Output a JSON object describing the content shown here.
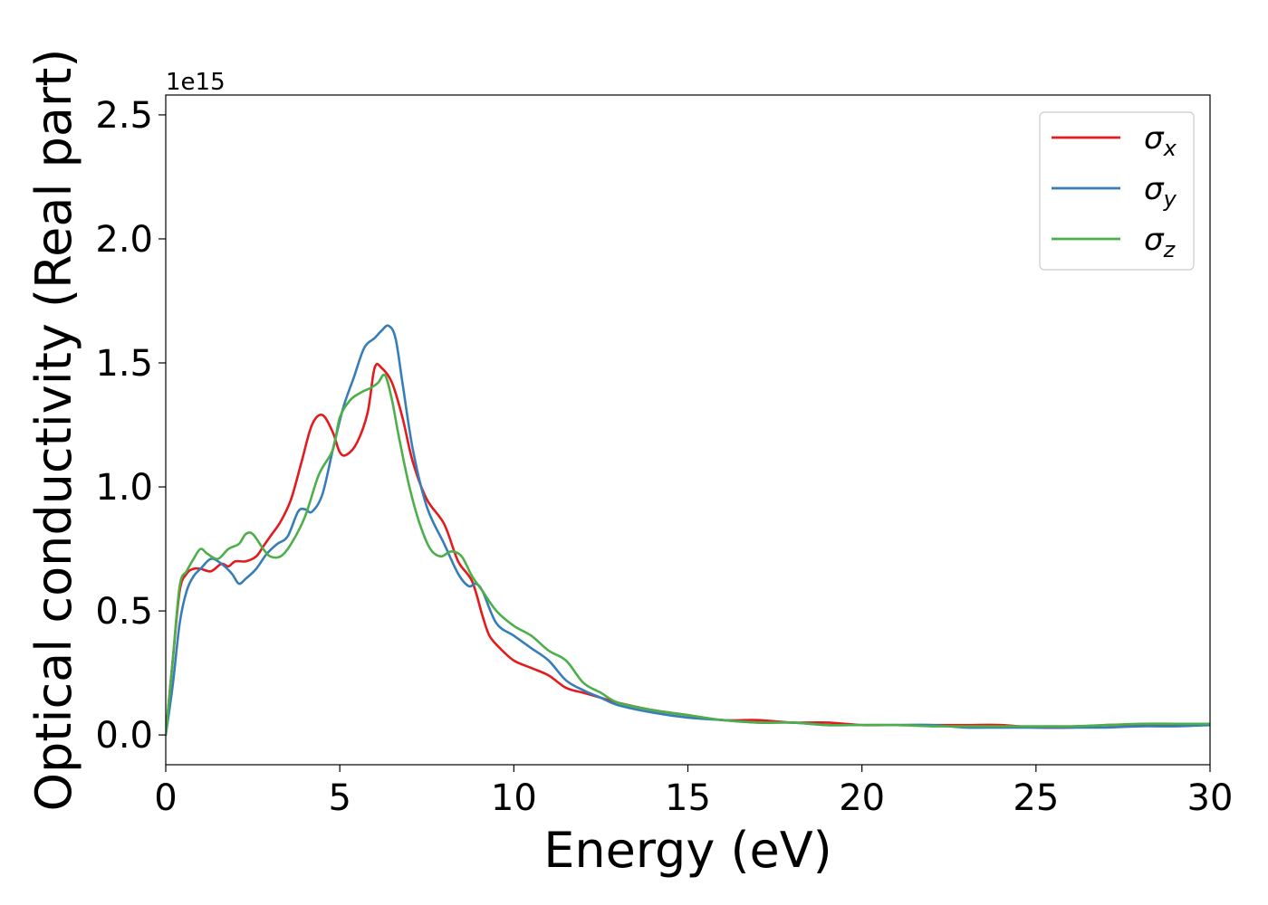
{
  "chart_data": {
    "type": "line",
    "xlabel": "Energy (eV)",
    "ylabel": "Optical conductivity (Real part)",
    "offset_text": "1e15",
    "xlim": [
      0,
      30
    ],
    "ylim": [
      -0.12,
      2.58
    ],
    "xticks": [
      "0",
      "5",
      "10",
      "15",
      "20",
      "25",
      "30"
    ],
    "yticks": [
      "0.0",
      "0.5",
      "1.0",
      "1.5",
      "2.0",
      "2.5"
    ],
    "grid": false,
    "legend_position": "top-right",
    "series": [
      {
        "name": "σx",
        "symbol": "σ",
        "subscript": "x",
        "color": "#e41a1c",
        "x": [
          0,
          0.2,
          0.4,
          0.6,
          0.8,
          1.0,
          1.3,
          1.6,
          1.8,
          2.0,
          2.3,
          2.6,
          2.8,
          3.0,
          3.3,
          3.6,
          3.9,
          4.2,
          4.5,
          4.8,
          5.0,
          5.2,
          5.5,
          5.8,
          6.0,
          6.2,
          6.5,
          6.8,
          7.1,
          7.5,
          8.0,
          8.4,
          8.8,
          9.1,
          9.3,
          9.6,
          10.0,
          10.5,
          11.0,
          11.5,
          12.0,
          12.5,
          13.0,
          14.0,
          15.0,
          16.0,
          17.0,
          18.0,
          19.0,
          20.0,
          21.0,
          22.0,
          23.0,
          24.0,
          25.0,
          26.0,
          27.0,
          28.0,
          29.0,
          30.0
        ],
        "y": [
          0.0,
          0.3,
          0.58,
          0.65,
          0.67,
          0.67,
          0.66,
          0.69,
          0.68,
          0.7,
          0.7,
          0.72,
          0.76,
          0.8,
          0.86,
          0.95,
          1.1,
          1.25,
          1.29,
          1.22,
          1.14,
          1.13,
          1.18,
          1.3,
          1.48,
          1.48,
          1.42,
          1.28,
          1.1,
          0.95,
          0.85,
          0.7,
          0.62,
          0.48,
          0.4,
          0.35,
          0.3,
          0.27,
          0.24,
          0.19,
          0.17,
          0.15,
          0.13,
          0.1,
          0.08,
          0.06,
          0.06,
          0.05,
          0.05,
          0.04,
          0.04,
          0.04,
          0.04,
          0.04,
          0.03,
          0.03,
          0.04,
          0.04,
          0.04,
          0.04
        ]
      },
      {
        "name": "σy",
        "symbol": "σ",
        "subscript": "y",
        "color": "#377eb8",
        "x": [
          0,
          0.2,
          0.4,
          0.6,
          0.8,
          1.0,
          1.3,
          1.6,
          1.9,
          2.1,
          2.3,
          2.6,
          2.9,
          3.2,
          3.5,
          3.8,
          4.0,
          4.2,
          4.5,
          4.8,
          5.1,
          5.4,
          5.7,
          6.0,
          6.2,
          6.4,
          6.6,
          6.8,
          7.1,
          7.5,
          8.0,
          8.4,
          8.7,
          8.9,
          9.1,
          9.5,
          10.0,
          10.5,
          11.0,
          11.5,
          12.0,
          12.5,
          13.0,
          14.0,
          15.0,
          16.0,
          17.0,
          18.0,
          19.0,
          20.0,
          21.0,
          22.0,
          23.0,
          24.0,
          25.0,
          26.0,
          27.0,
          28.0,
          29.0,
          30.0
        ],
        "y": [
          0.0,
          0.2,
          0.45,
          0.58,
          0.64,
          0.67,
          0.71,
          0.69,
          0.65,
          0.61,
          0.63,
          0.67,
          0.73,
          0.77,
          0.8,
          0.9,
          0.91,
          0.9,
          0.97,
          1.15,
          1.32,
          1.44,
          1.56,
          1.6,
          1.63,
          1.65,
          1.6,
          1.42,
          1.15,
          0.92,
          0.77,
          0.65,
          0.6,
          0.61,
          0.58,
          0.45,
          0.4,
          0.35,
          0.3,
          0.22,
          0.18,
          0.15,
          0.12,
          0.09,
          0.07,
          0.06,
          0.05,
          0.05,
          0.04,
          0.04,
          0.04,
          0.04,
          0.03,
          0.03,
          0.03,
          0.03,
          0.03,
          0.035,
          0.035,
          0.04
        ]
      },
      {
        "name": "σz",
        "symbol": "σ",
        "subscript": "z",
        "color": "#4daf4a",
        "x": [
          0,
          0.2,
          0.4,
          0.6,
          0.8,
          1.0,
          1.2,
          1.5,
          1.8,
          2.1,
          2.3,
          2.5,
          2.8,
          3.0,
          3.3,
          3.6,
          4.0,
          4.4,
          4.8,
          5.0,
          5.3,
          5.6,
          5.9,
          6.1,
          6.3,
          6.5,
          6.7,
          7.0,
          7.3,
          7.6,
          7.9,
          8.2,
          8.5,
          8.8,
          9.1,
          9.5,
          10.0,
          10.5,
          11.0,
          11.5,
          12.0,
          12.5,
          13.0,
          14.0,
          15.0,
          16.0,
          17.0,
          18.0,
          19.0,
          20.0,
          21.0,
          22.0,
          23.0,
          24.0,
          25.0,
          26.0,
          27.0,
          28.0,
          29.0,
          30.0
        ],
        "y": [
          0.0,
          0.3,
          0.6,
          0.66,
          0.71,
          0.75,
          0.73,
          0.71,
          0.75,
          0.77,
          0.81,
          0.81,
          0.75,
          0.72,
          0.72,
          0.77,
          0.88,
          1.05,
          1.15,
          1.28,
          1.35,
          1.38,
          1.4,
          1.42,
          1.45,
          1.35,
          1.2,
          1.0,
          0.85,
          0.75,
          0.72,
          0.74,
          0.72,
          0.64,
          0.58,
          0.5,
          0.44,
          0.4,
          0.34,
          0.3,
          0.21,
          0.17,
          0.13,
          0.1,
          0.08,
          0.06,
          0.05,
          0.05,
          0.04,
          0.04,
          0.04,
          0.035,
          0.035,
          0.035,
          0.035,
          0.035,
          0.04,
          0.045,
          0.045,
          0.045
        ]
      }
    ]
  }
}
